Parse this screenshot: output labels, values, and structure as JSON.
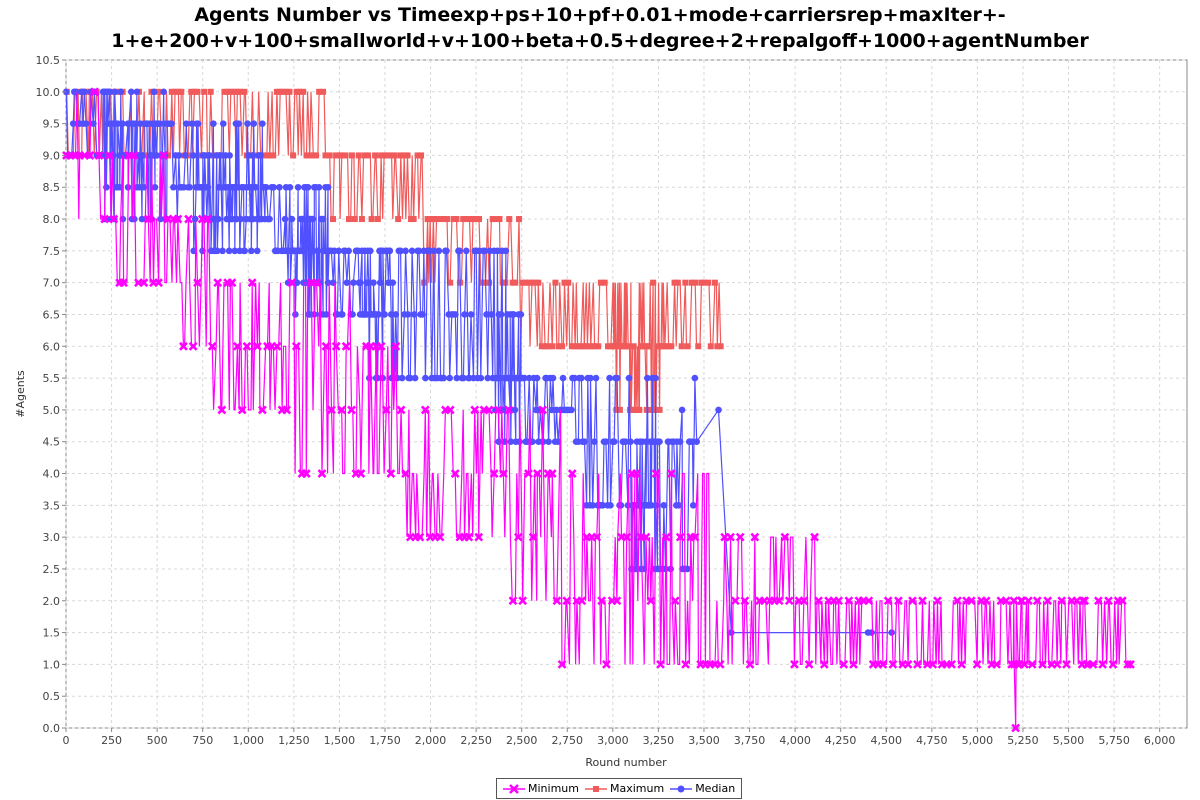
{
  "chart_data": {
    "type": "line",
    "title_line1": "Agents Number vs Timeexp+ps+10+pf+0.01+mode+carriersrep+maxIter+-",
    "title_line2": "1+e+200+v+100+smallworld+v+100+beta+0.5+degree+2+repalgoff+1000+agentNumber",
    "xlabel": "Round number",
    "ylabel": "#Agents",
    "xlim": [
      0,
      6150
    ],
    "ylim": [
      0,
      10.5
    ],
    "xticks": [
      "0",
      "250",
      "500",
      "750",
      "1,000",
      "1,250",
      "1,500",
      "1,750",
      "2,000",
      "2,250",
      "2,500",
      "2,750",
      "3,000",
      "3,250",
      "3,500",
      "3,750",
      "4,000",
      "4,250",
      "4,500",
      "4,750",
      "5,000",
      "5,250",
      "5,500",
      "5,750",
      "6,000"
    ],
    "yticks": [
      "0.0",
      "0.5",
      "1.0",
      "1.5",
      "2.0",
      "2.5",
      "3.0",
      "3.5",
      "4.0",
      "4.5",
      "5.0",
      "5.5",
      "6.0",
      "6.5",
      "7.0",
      "7.5",
      "8.0",
      "8.5",
      "9.0",
      "9.5",
      "10.0",
      "10.5"
    ],
    "grid": true,
    "legend_position": "bottom",
    "series": [
      {
        "name": "Minimum",
        "color": "#ff00ff",
        "marker": "x-icon",
        "bands": [
          {
            "from": 0,
            "to": 30,
            "values": [
              10,
              9
            ]
          },
          {
            "from": 30,
            "to": 180,
            "values": [
              10,
              9,
              8
            ]
          },
          {
            "from": 180,
            "to": 640,
            "values": [
              9,
              8,
              7
            ]
          },
          {
            "from": 640,
            "to": 800,
            "values": [
              8,
              7,
              6
            ]
          },
          {
            "from": 800,
            "to": 1200,
            "values": [
              7,
              6,
              5
            ]
          },
          {
            "from": 1200,
            "to": 1570,
            "values": [
              7,
              6,
              5,
              4
            ]
          },
          {
            "from": 1570,
            "to": 1870,
            "values": [
              6,
              5,
              4
            ]
          },
          {
            "from": 1870,
            "to": 2380,
            "values": [
              5,
              4,
              3
            ]
          },
          {
            "from": 2380,
            "to": 2720,
            "values": [
              5,
              4,
              3,
              2
            ]
          },
          {
            "from": 2720,
            "to": 3640,
            "values": [
              4,
              3,
              2,
              1
            ]
          },
          {
            "from": 3640,
            "to": 4300,
            "values": [
              3,
              2,
              1
            ]
          },
          {
            "from": 4300,
            "to": 5840,
            "values": [
              2,
              1
            ]
          }
        ],
        "points": [
          [
            5200,
            2
          ],
          [
            5210,
            0
          ],
          [
            5230,
            1
          ],
          [
            5245,
            2
          ],
          [
            5280,
            2
          ],
          [
            5580,
            2
          ],
          [
            5600,
            1
          ],
          [
            5840,
            1
          ]
        ]
      },
      {
        "name": "Maximum",
        "color": "#f05a5a",
        "marker": "square-icon",
        "bands": [
          {
            "from": 0,
            "to": 1450,
            "values": [
              10,
              9
            ]
          },
          {
            "from": 1450,
            "to": 1960,
            "values": [
              9,
              8
            ]
          },
          {
            "from": 1960,
            "to": 2490,
            "values": [
              8,
              7
            ]
          },
          {
            "from": 2490,
            "to": 3600,
            "values": [
              7,
              6
            ]
          },
          {
            "from": 3000,
            "to": 3280,
            "values": [
              6,
              5
            ]
          }
        ],
        "points": []
      },
      {
        "name": "Median",
        "color": "#5050ff",
        "marker": "circle-icon",
        "bands": [
          {
            "from": 0,
            "to": 560,
            "values": [
              10,
              9.5,
              9
            ]
          },
          {
            "from": 200,
            "to": 1100,
            "values": [
              9.5,
              9,
              8.5,
              8
            ]
          },
          {
            "from": 700,
            "to": 1450,
            "values": [
              8.5,
              8,
              7.5
            ]
          },
          {
            "from": 1200,
            "to": 1800,
            "values": [
              7.5,
              7,
              6.5
            ]
          },
          {
            "from": 1600,
            "to": 2500,
            "values": [
              7.5,
              6.5,
              5.5
            ]
          },
          {
            "from": 2350,
            "to": 2850,
            "values": [
              5.5,
              5,
              4.5
            ]
          },
          {
            "from": 2850,
            "to": 3250,
            "values": [
              5.5,
              4.5,
              3.5
            ]
          },
          {
            "from": 3100,
            "to": 3450,
            "values": [
              3.5,
              2.5,
              4.5
            ]
          }
        ],
        "points": [
          [
            3450,
            5.5
          ],
          [
            3460,
            4.5
          ],
          [
            3650,
            1.5
          ],
          [
            4400,
            1.5
          ],
          [
            4420,
            1.5
          ],
          [
            4530,
            1.5
          ],
          [
            3580,
            5
          ],
          [
            3380,
            5
          ]
        ]
      }
    ]
  }
}
